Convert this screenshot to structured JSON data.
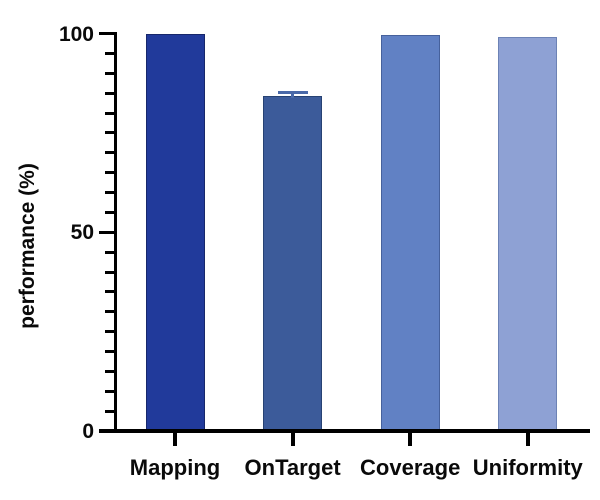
{
  "chart_data": {
    "type": "bar",
    "title": "",
    "categories": [
      "Mapping",
      "OnTarget",
      "Coverage",
      "Uniformity"
    ],
    "values": [
      99.9,
      84.4,
      99.6,
      99.1
    ],
    "errors": [
      0,
      1.1,
      0,
      0
    ],
    "bar_colors": [
      "#213a9b",
      "#3c5b9a",
      "#6181c4",
      "#8ea1d4"
    ],
    "bar_border_colors": [
      "#17276b",
      "#274273",
      "#46619c",
      "#6c82b5"
    ],
    "error_bar_color": "#4a69a8",
    "ylabel": "performance (%)",
    "xlabel": "",
    "ylim": [
      0,
      100
    ],
    "yticks_major": [
      0,
      50,
      100
    ],
    "ytick_minor_step": 5,
    "grid": false,
    "legend": null,
    "axis_color": "#000000",
    "text_color": "#0a0a0a",
    "background": "#ffffff"
  }
}
